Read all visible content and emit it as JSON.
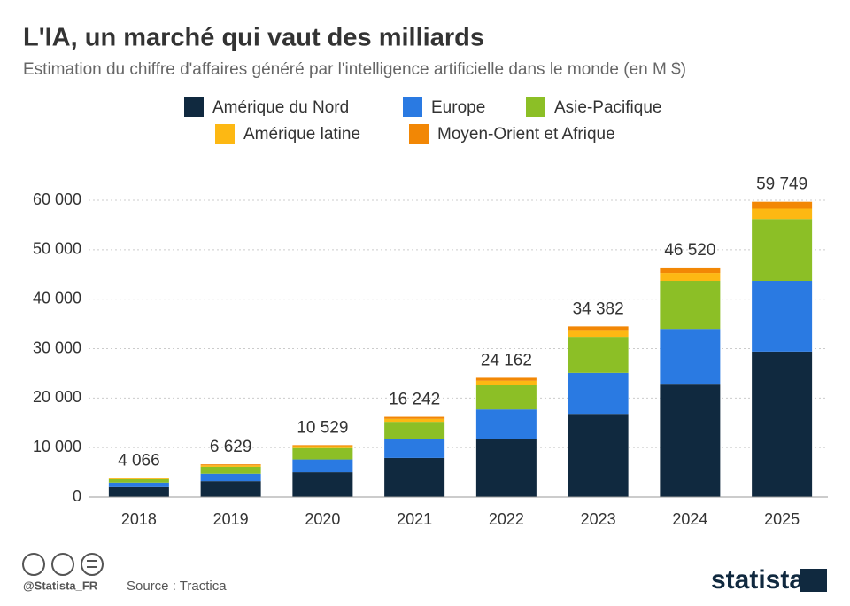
{
  "chart_data": {
    "type": "stacked-bar",
    "title": "L'IA, un marché qui vaut des milliards",
    "subtitle": "Estimation du chiffre d'affaires généré par l'intelligence artificielle dans le monde (en M $)",
    "categories": [
      "2018",
      "2019",
      "2020",
      "2021",
      "2022",
      "2023",
      "2024",
      "2025"
    ],
    "series": [
      {
        "name": "Amérique du Nord",
        "color": "#10293f",
        "values": [
          2000,
          3200,
          5000,
          7900,
          11800,
          16800,
          22900,
          29400
        ]
      },
      {
        "name": "Europe",
        "color": "#2a7ae2",
        "values": [
          900,
          1500,
          2600,
          3900,
          5900,
          8300,
          11100,
          14300
        ]
      },
      {
        "name": "Asie-Pacifique",
        "color": "#8cbf26",
        "values": [
          700,
          1400,
          2300,
          3400,
          5000,
          7300,
          9700,
          12500
        ]
      },
      {
        "name": "Amérique latine",
        "color": "#fdb813",
        "values": [
          150,
          300,
          400,
          600,
          800,
          1200,
          1600,
          2100
        ]
      },
      {
        "name": "Moyen-Orient et Afrique",
        "color": "#f28705",
        "values": [
          100,
          200,
          200,
          400,
          600,
          900,
          1100,
          1400
        ]
      }
    ],
    "totals": {
      "values": [
        4066,
        6629,
        10529,
        16242,
        24162,
        34382,
        46520,
        59749
      ],
      "value_labels": [
        "4 066",
        "6 629",
        "10 529",
        "16 242",
        "24 162",
        "34 382",
        "46 520",
        "59 749"
      ]
    },
    "ylim": [
      0,
      60000
    ],
    "yticks": [
      0,
      {
        "value": 10000,
        "label": "10 000"
      },
      {
        "value": 20000,
        "label": "20 000"
      },
      {
        "value": 30000,
        "label": "30 000"
      },
      {
        "value": 40000,
        "label": "40 000"
      },
      {
        "value": 50000,
        "label": "50 000"
      },
      {
        "value": 60000,
        "label": "60 000"
      }
    ],
    "grid": true,
    "credit": "@Statista_FR",
    "source": "Source : Tractica",
    "brand": "statista"
  }
}
